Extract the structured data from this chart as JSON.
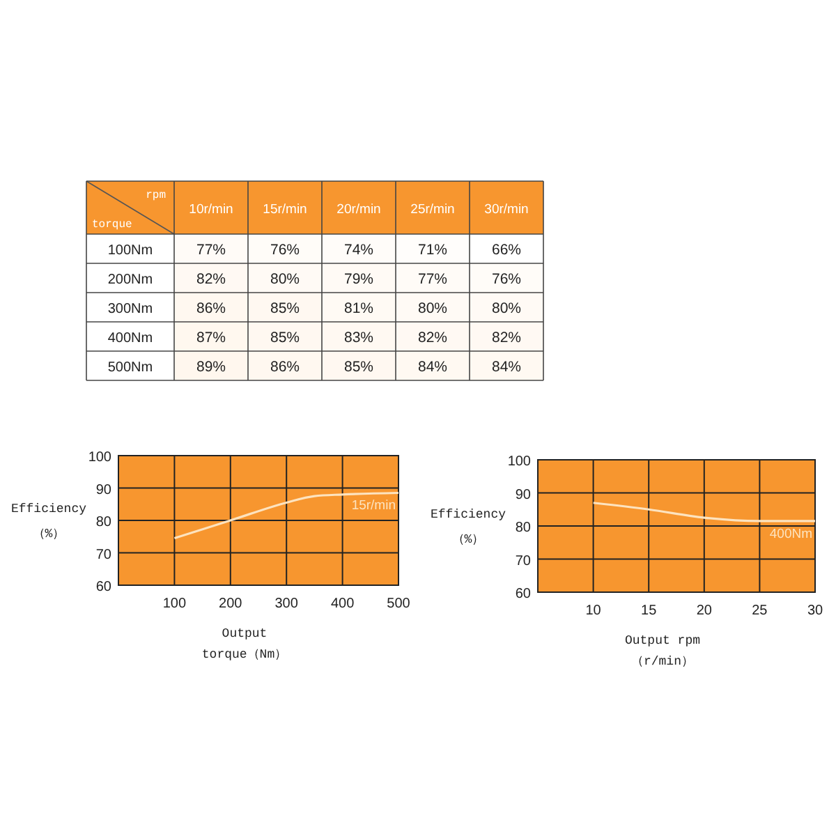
{
  "chart_data": [
    {
      "type": "heatmap",
      "xlabel": "rpm",
      "ylabel": "torque",
      "categories": [
        "10r/min",
        "15r/min",
        "20r/min",
        "25r/min",
        "30r/min"
      ],
      "y_categories": [
        "100Nm",
        "200Nm",
        "300Nm",
        "400Nm",
        "500Nm"
      ],
      "cells": [
        [
          77,
          76,
          74,
          71,
          66
        ],
        [
          82,
          80,
          79,
          77,
          76
        ],
        [
          86,
          85,
          81,
          80,
          80
        ],
        [
          87,
          85,
          83,
          82,
          82
        ],
        [
          89,
          86,
          85,
          84,
          84
        ]
      ],
      "cell_labels": [
        [
          "77%",
          "76%",
          "74%",
          "71%",
          "66%"
        ],
        [
          "82%",
          "80%",
          "79%",
          "77%",
          "76%"
        ],
        [
          "86%",
          "85%",
          "81%",
          "80%",
          "80%"
        ],
        [
          "87%",
          "85%",
          "83%",
          "82%",
          "82%"
        ],
        [
          "89%",
          "86%",
          "85%",
          "84%",
          "84%"
        ]
      ]
    },
    {
      "type": "line",
      "xlabel": "Output\ntorque（Nm）",
      "ylabel": "Efficiency\n（%）",
      "xlim": [
        0,
        500
      ],
      "xticks": [
        100,
        200,
        300,
        400,
        500
      ],
      "ylim": [
        60,
        100
      ],
      "yticks": [
        60,
        70,
        80,
        90,
        100
      ],
      "grid": true,
      "series": [
        {
          "name": "15r/min",
          "color": "#fde3bf",
          "x": [
            100,
            200,
            300,
            350,
            400,
            500
          ],
          "values": [
            74.5,
            80,
            85.5,
            87.5,
            88,
            88.5
          ]
        }
      ]
    },
    {
      "type": "line",
      "xlabel": "Output rpm\n（r/min）",
      "ylabel": "Efficiency\n（%）",
      "xlim": [
        5,
        30
      ],
      "xticks": [
        10,
        15,
        20,
        25,
        30
      ],
      "ylim": [
        60,
        100
      ],
      "yticks": [
        60,
        70,
        80,
        90,
        100
      ],
      "grid": true,
      "series": [
        {
          "name": "400Nm",
          "color": "#fde3bf",
          "x": [
            10,
            15,
            20,
            25,
            30
          ],
          "values": [
            87,
            85,
            82.5,
            81.5,
            81.5
          ]
        }
      ]
    }
  ]
}
